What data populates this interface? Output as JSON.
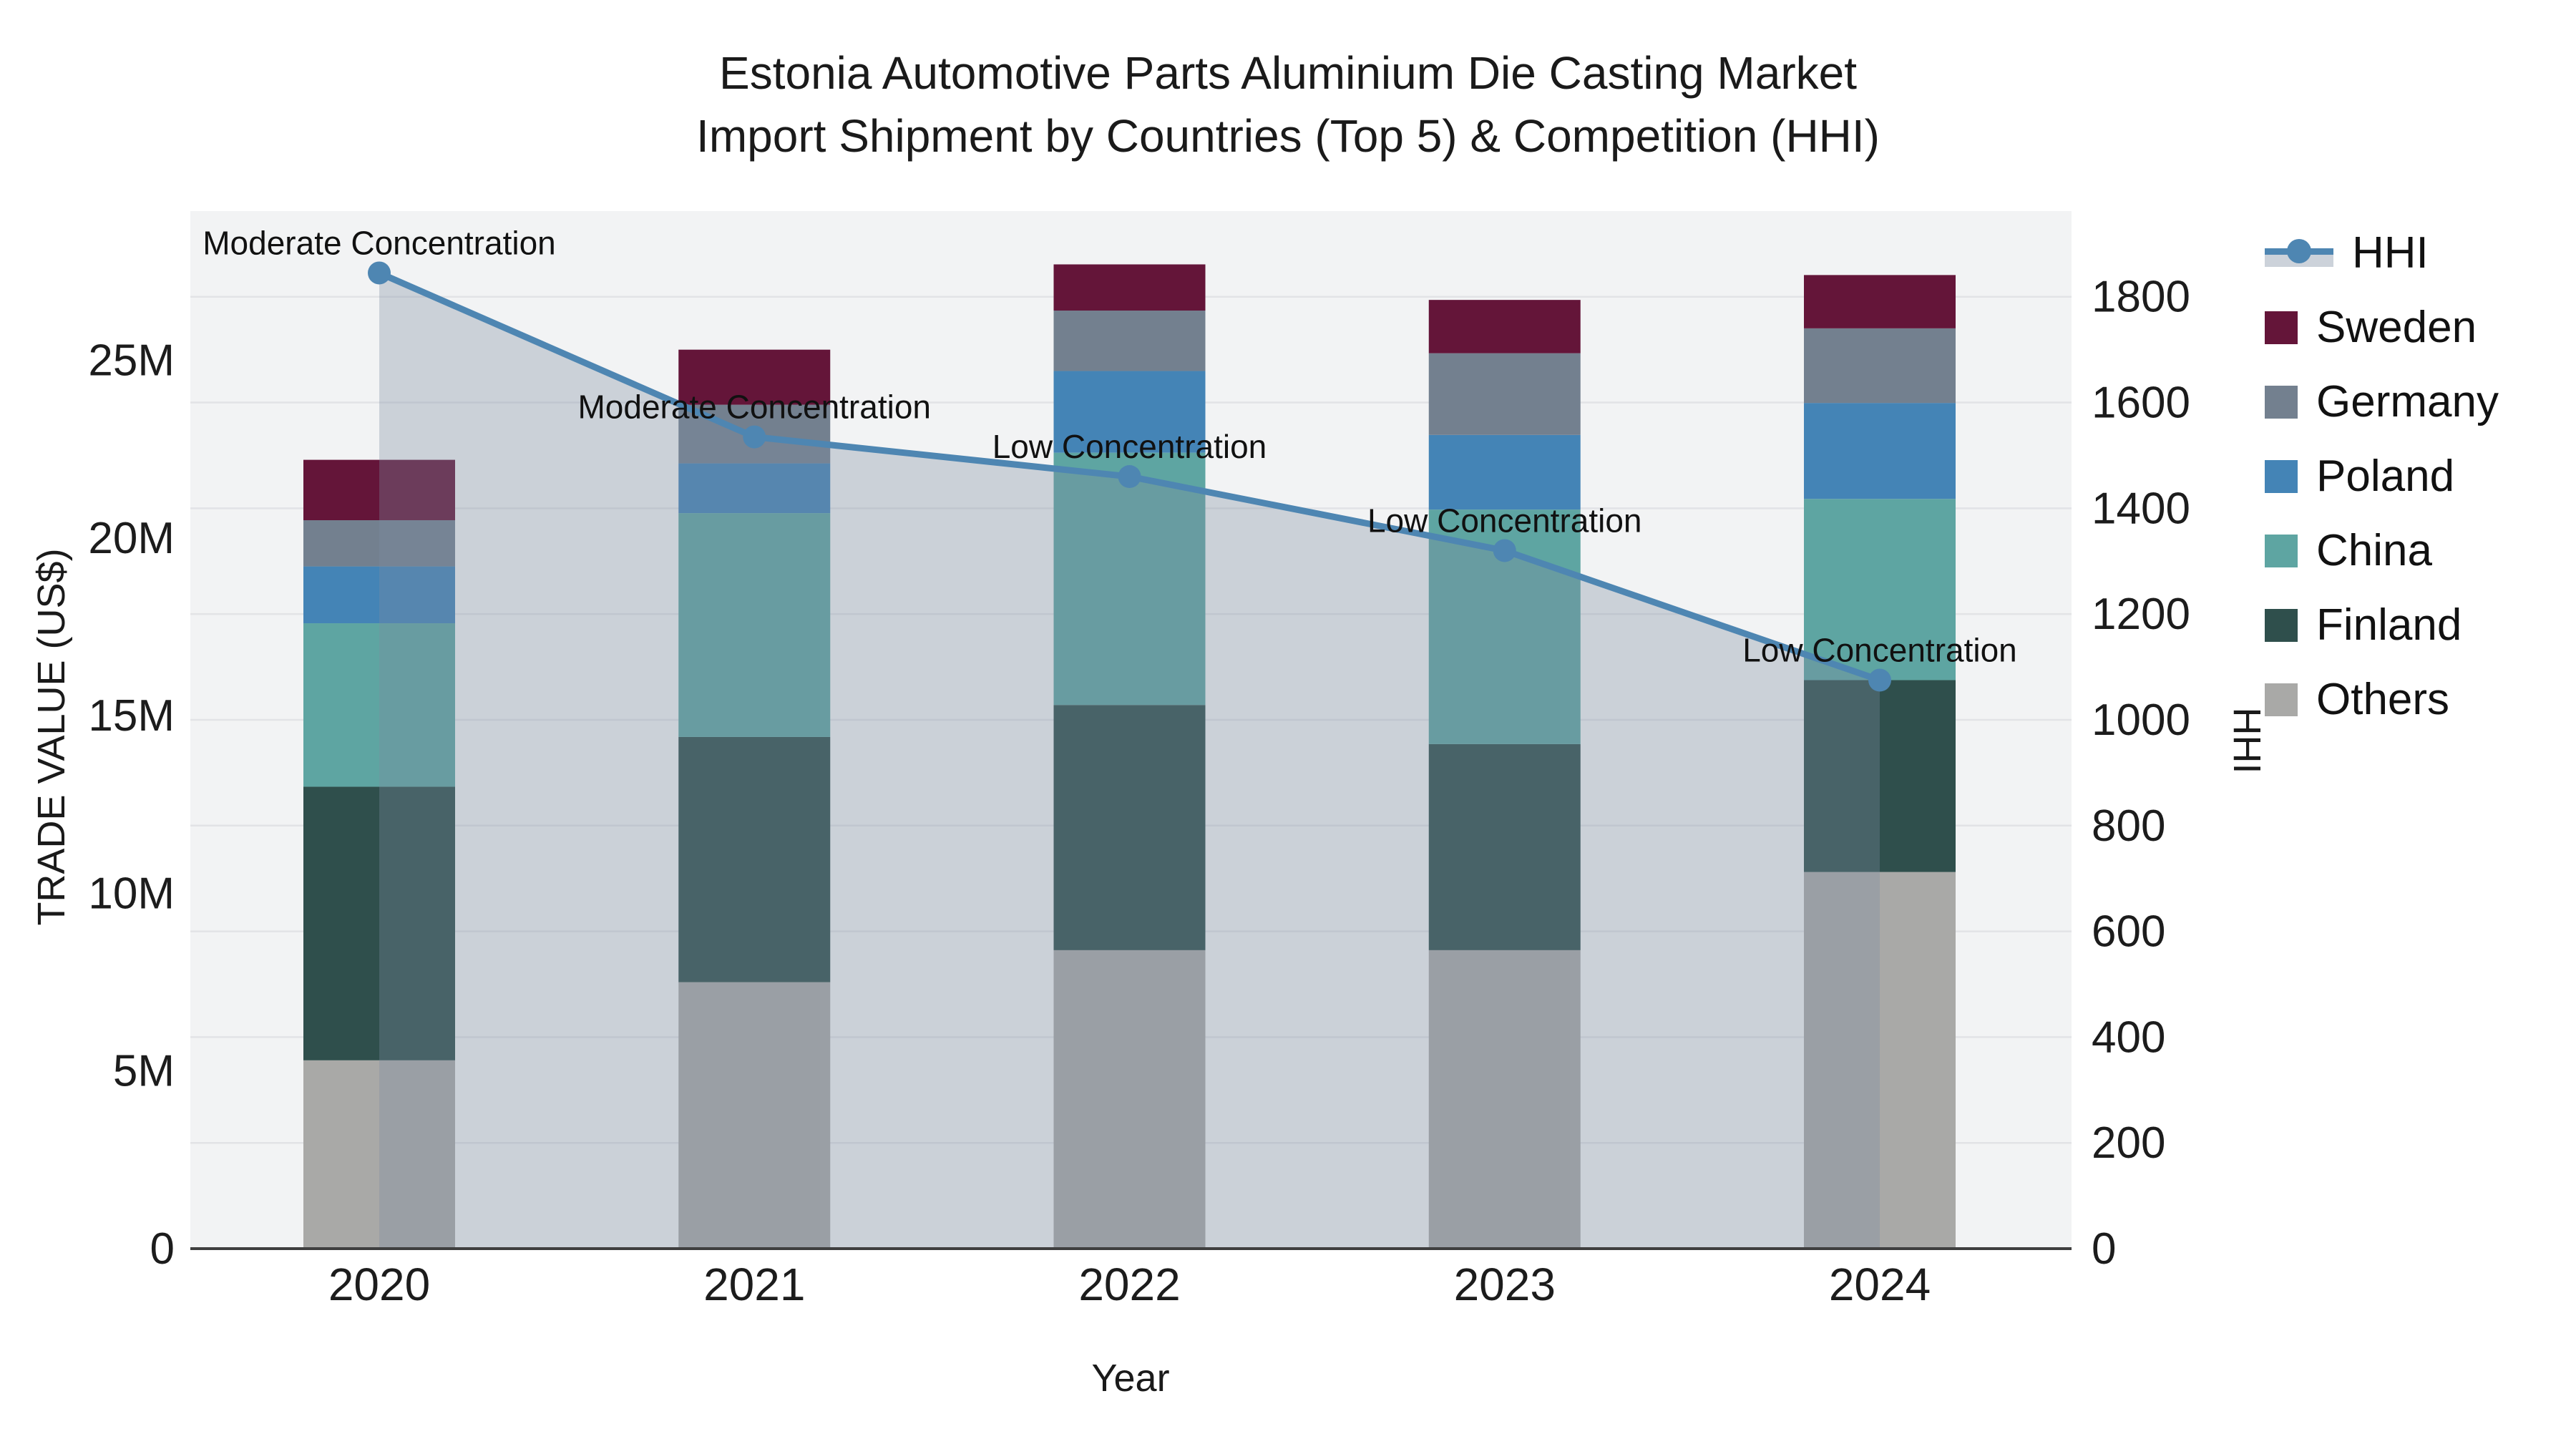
{
  "title": {
    "line1": "Estonia Automotive Parts Aluminium Die Casting Market",
    "line2": "Import Shipment by Countries (Top 5) & Competition (HHI)"
  },
  "axes": {
    "x_title": "Year",
    "y_left_title": "TRADE VALUE (US$)",
    "y_right_title": "HHI",
    "y_left_ticks": [
      {
        "label": "0",
        "value": 0
      },
      {
        "label": "5M",
        "value": 5
      },
      {
        "label": "10M",
        "value": 10
      },
      {
        "label": "15M",
        "value": 15
      },
      {
        "label": "20M",
        "value": 20
      },
      {
        "label": "25M",
        "value": 25
      }
    ],
    "y_left_max": 29.2,
    "y_right_ticks": [
      0,
      200,
      400,
      600,
      800,
      1000,
      1200,
      1400,
      1600,
      1800
    ],
    "y_right_max": 1962
  },
  "chart_data": {
    "type": "bar+line combo (stacked bars, left axis; HHI line with area fill, right axis)",
    "categories": [
      "2020",
      "2021",
      "2022",
      "2023",
      "2024"
    ],
    "bar_unit": "Trade value, millions US$",
    "series": [
      {
        "name": "Others",
        "color": "#a9a9a7",
        "values": [
          5.3,
          7.5,
          8.4,
          8.4,
          10.6
        ]
      },
      {
        "name": "Finland",
        "color": "#2f4f4c",
        "values": [
          7.7,
          6.9,
          6.9,
          5.8,
          5.4
        ]
      },
      {
        "name": "China",
        "color": "#5ea5a2",
        "values": [
          4.6,
          6.3,
          7.1,
          6.6,
          5.1
        ]
      },
      {
        "name": "Poland",
        "color": "#4484b6",
        "values": [
          1.6,
          1.4,
          2.3,
          2.1,
          2.7
        ]
      },
      {
        "name": "Germany",
        "color": "#73808f",
        "values": [
          1.3,
          1.65,
          1.7,
          2.3,
          2.1
        ]
      },
      {
        "name": "Sweden",
        "color": "#641539",
        "values": [
          1.7,
          1.55,
          1.3,
          1.5,
          1.5
        ]
      }
    ],
    "line": {
      "name": "HHI",
      "color": "#4e86b2",
      "area_fill": "rgba(125,140,161,0.33)",
      "values": [
        1845,
        1535,
        1460,
        1320,
        1075
      ]
    },
    "annotations": [
      {
        "category": "2020",
        "text": "Moderate Concentration"
      },
      {
        "category": "2021",
        "text": "Moderate Concentration"
      },
      {
        "category": "2022",
        "text": "Low Concentration"
      },
      {
        "category": "2023",
        "text": "Low Concentration"
      },
      {
        "category": "2024",
        "text": "Low Concentration"
      }
    ],
    "legend": [
      {
        "label": "HHI",
        "type": "line",
        "color": "#4e86b2"
      },
      {
        "label": "Sweden",
        "type": "swatch",
        "color": "#641539"
      },
      {
        "label": "Germany",
        "type": "swatch",
        "color": "#73808f"
      },
      {
        "label": "Poland",
        "type": "swatch",
        "color": "#4484b6"
      },
      {
        "label": "China",
        "type": "swatch",
        "color": "#5ea5a2"
      },
      {
        "label": "Finland",
        "type": "swatch",
        "color": "#2f4f4c"
      },
      {
        "label": "Others",
        "type": "swatch",
        "color": "#a9a9a7"
      }
    ],
    "plot_colors": {
      "plot_background": "#f2f3f4",
      "gridline": "#e2e3e6",
      "axis_line": "#3f3f3f",
      "text": "#1c1c1c"
    },
    "layout_hints": {
      "grid": "horizontal, every 200 HHI",
      "legend_position": "top-right outside plot"
    }
  }
}
